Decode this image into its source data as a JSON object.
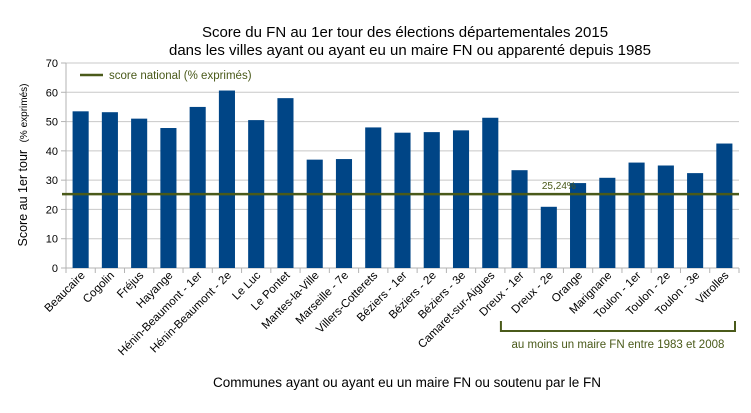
{
  "chart_data": {
    "type": "bar",
    "title": "Score du FN au 1er tour des élections départementales 2015",
    "subtitle": "dans les villes ayant ou ayant eu un maire FN ou apparenté depuis 1985",
    "xlabel": "Communes ayant ou ayant eu un maire FN ou soutenu par le FN",
    "ylabel": "Score au 1er tour",
    "ylabel_unit": "(% exprimés)",
    "ylim": [
      0,
      70
    ],
    "yticks": [
      0,
      10,
      20,
      30,
      40,
      50,
      60,
      70
    ],
    "grid": true,
    "bar_color": "#004586",
    "categories": [
      "Beaucaire",
      "Cogolin",
      "Fréjus",
      "Hayange",
      "Hénin-Beaumont - 1er",
      "Hénin-Beaumont - 2e",
      "Le Luc",
      "Le Pontet",
      "Mantes-la-Ville",
      "Marseille - 7e",
      "Villers-Cotterets",
      "Béziers - 1er",
      "Béziers - 2e",
      "Béziers - 3e",
      "Camaret-sur-Aigues",
      "Dreux - 1er",
      "Dreux - 2e",
      "Orange",
      "Marignane",
      "Toulon - 1er",
      "Toulon - 2e",
      "Toulon - 3e",
      "Vitrolles"
    ],
    "values": [
      53.5,
      53.2,
      51,
      47.8,
      55,
      60.6,
      50.5,
      58,
      37,
      37.2,
      48,
      46.2,
      46.4,
      47,
      51.3,
      33.4,
      20.9,
      29,
      30.8,
      36,
      35,
      32.4,
      42.5
    ],
    "reference_line": {
      "name": "score national (% exprimés)",
      "value": 25.24,
      "label": "25,24%",
      "color": "#4a5a1a"
    },
    "bracket": {
      "label": "au moins un maire FN entre 1983 et 2008",
      "from_category": "Dreux - 1er",
      "to_category": "Vitrolles",
      "color": "#4a5a1a"
    },
    "legend_position": "top-left"
  }
}
